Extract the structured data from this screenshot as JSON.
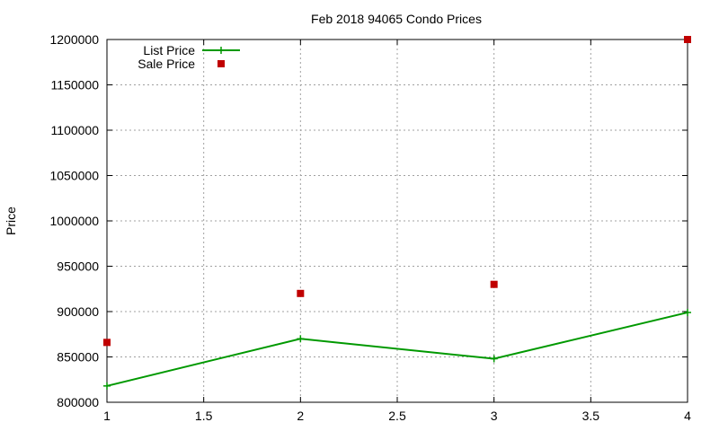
{
  "chart_data": {
    "type": "line",
    "title": "Feb 2018 94065 Condo Prices",
    "xlabel": "",
    "ylabel": "Price",
    "xlim": [
      1,
      4
    ],
    "ylim": [
      800000,
      1200000
    ],
    "xticks": [
      1,
      1.5,
      2,
      2.5,
      3,
      3.5,
      4
    ],
    "xtick_labels": [
      "1",
      "1.5",
      "2",
      "2.5",
      "3",
      "3.5",
      "4"
    ],
    "yticks": [
      800000,
      850000,
      900000,
      950000,
      1000000,
      1050000,
      1100000,
      1150000,
      1200000
    ],
    "ytick_labels": [
      "800000",
      "850000",
      "900000",
      "950000",
      "1000000",
      "1050000",
      "1100000",
      "1150000",
      "1200000"
    ],
    "grid": true,
    "legend_position": "top-left",
    "series": [
      {
        "name": "List Price",
        "style": "line-with-plus-markers",
        "color": "#009900",
        "x": [
          1,
          2,
          3,
          4
        ],
        "values": [
          818000,
          870000,
          848000,
          899000
        ]
      },
      {
        "name": "Sale Price",
        "style": "square-points",
        "color": "#c00000",
        "x": [
          1,
          2,
          3,
          4
        ],
        "values": [
          866000,
          920000,
          930000,
          1200000
        ]
      }
    ]
  }
}
